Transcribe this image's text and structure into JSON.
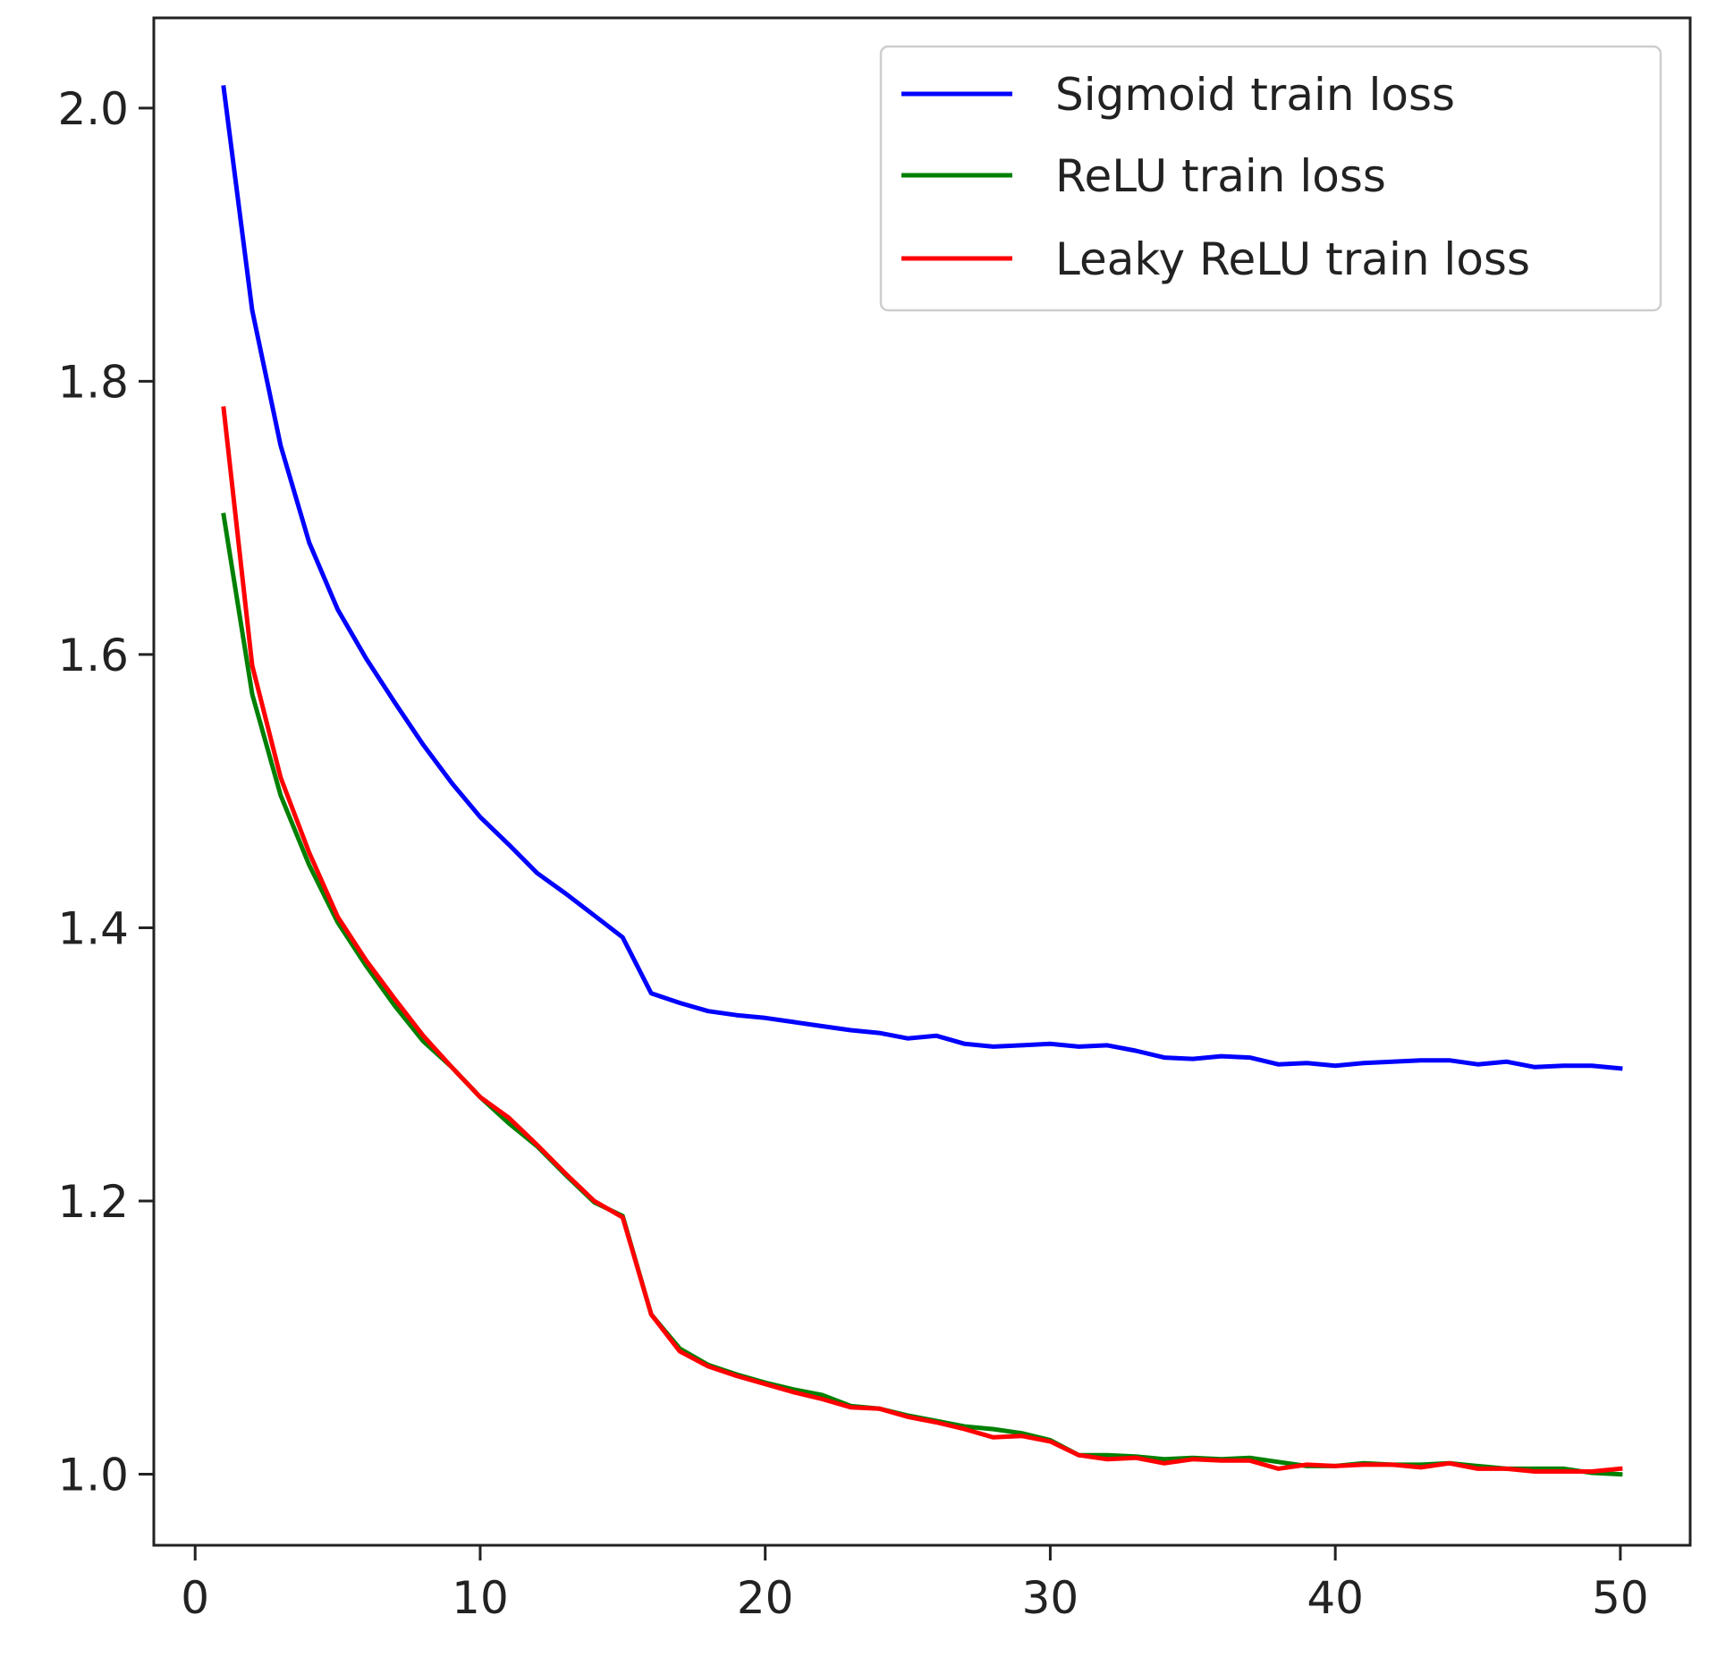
{
  "chart_data": {
    "type": "line",
    "title": "",
    "xlabel": "",
    "ylabel": "",
    "xlim": [
      -1.45,
      52.45
    ],
    "ylim": [
      0.948,
      2.066
    ],
    "xticks": [
      0,
      10,
      20,
      30,
      40,
      50
    ],
    "xtick_labels": [
      "0",
      "10",
      "20",
      "30",
      "40",
      "50"
    ],
    "yticks": [
      1.0,
      1.2,
      1.4,
      1.6,
      1.8,
      2.0
    ],
    "ytick_labels": [
      "1.0",
      "1.2",
      "1.4",
      "1.6",
      "1.8",
      "2.0"
    ],
    "grid": false,
    "legend_position": "top-right",
    "x": [
      1,
      2,
      3,
      4,
      5,
      6,
      7,
      8,
      9,
      10,
      11,
      12,
      13,
      14,
      15,
      16,
      17,
      18,
      19,
      20,
      21,
      22,
      23,
      24,
      25,
      26,
      27,
      28,
      29,
      30,
      31,
      32,
      33,
      34,
      35,
      36,
      37,
      38,
      39,
      40,
      41,
      42,
      43,
      44,
      45,
      46,
      47,
      48,
      49,
      50
    ],
    "series": [
      {
        "name": "Sigmoid train loss",
        "color": "#0000ff",
        "values": [
          2.015,
          1.852,
          1.753,
          1.682,
          1.633,
          1.597,
          1.565,
          1.534,
          1.506,
          1.481,
          1.461,
          1.44,
          1.425,
          1.409,
          1.393,
          1.352,
          1.345,
          1.339,
          1.336,
          1.334,
          1.331,
          1.328,
          1.325,
          1.323,
          1.319,
          1.321,
          1.315,
          1.313,
          1.314,
          1.315,
          1.313,
          1.314,
          1.31,
          1.305,
          1.304,
          1.306,
          1.305,
          1.3,
          1.301,
          1.299,
          1.301,
          1.302,
          1.303,
          1.303,
          1.3,
          1.302,
          1.298,
          1.299,
          1.299,
          1.297
        ]
      },
      {
        "name": "ReLU train loss",
        "color": "#008000",
        "values": [
          1.702,
          1.571,
          1.497,
          1.446,
          1.404,
          1.372,
          1.343,
          1.317,
          1.298,
          1.276,
          1.257,
          1.24,
          1.219,
          1.199,
          1.189,
          1.117,
          1.092,
          1.08,
          1.073,
          1.067,
          1.062,
          1.058,
          1.05,
          1.048,
          1.043,
          1.039,
          1.035,
          1.033,
          1.03,
          1.025,
          1.014,
          1.014,
          1.013,
          1.011,
          1.012,
          1.011,
          1.012,
          1.009,
          1.006,
          1.006,
          1.008,
          1.007,
          1.007,
          1.008,
          1.006,
          1.004,
          1.004,
          1.004,
          1.001,
          1.0
        ]
      },
      {
        "name": "Leaky ReLU train loss",
        "color": "#ff0000",
        "values": [
          1.78,
          1.592,
          1.51,
          1.455,
          1.408,
          1.376,
          1.348,
          1.321,
          1.298,
          1.276,
          1.261,
          1.241,
          1.22,
          1.2,
          1.188,
          1.117,
          1.09,
          1.079,
          1.072,
          1.066,
          1.06,
          1.055,
          1.049,
          1.048,
          1.042,
          1.038,
          1.033,
          1.027,
          1.028,
          1.024,
          1.014,
          1.011,
          1.012,
          1.008,
          1.011,
          1.01,
          1.01,
          1.004,
          1.007,
          1.006,
          1.007,
          1.007,
          1.005,
          1.008,
          1.004,
          1.004,
          1.002,
          1.002,
          1.002,
          1.004
        ]
      }
    ]
  }
}
